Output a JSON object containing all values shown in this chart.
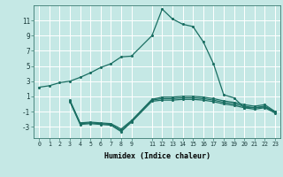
{
  "xlabel": "Humidex (Indice chaleur)",
  "bg_color": "#c5e8e5",
  "line_color": "#1a6e62",
  "grid_color": "#ffffff",
  "xlim": [
    -0.5,
    23.5
  ],
  "ylim": [
    -4.5,
    13.0
  ],
  "xtick_vals": [
    0,
    1,
    2,
    3,
    4,
    5,
    6,
    7,
    8,
    9,
    11,
    12,
    13,
    14,
    15,
    16,
    17,
    18,
    19,
    20,
    21,
    22,
    23
  ],
  "xtick_labels": [
    "0",
    "1",
    "2",
    "3",
    "4",
    "5",
    "6",
    "7",
    "8",
    "9",
    "11",
    "12",
    "13",
    "14",
    "15",
    "16",
    "17",
    "18",
    "19",
    "20",
    "21",
    "22",
    "23"
  ],
  "ytick_vals": [
    -3,
    -1,
    1,
    3,
    5,
    7,
    9,
    11
  ],
  "ytick_labels": [
    "-3",
    "-1",
    "1",
    "3",
    "5",
    "7",
    "9",
    "11"
  ],
  "line1_x": [
    0,
    1,
    2,
    3,
    4,
    5,
    6,
    7,
    8,
    9,
    11,
    12,
    13,
    14,
    15,
    16,
    17,
    18,
    19,
    20,
    21,
    22,
    23
  ],
  "line1_y": [
    2.2,
    2.4,
    2.8,
    3.0,
    3.5,
    4.1,
    4.8,
    5.3,
    6.2,
    6.3,
    9.0,
    12.5,
    11.2,
    10.5,
    10.2,
    8.2,
    5.3,
    1.2,
    0.8,
    -0.5,
    -0.5,
    -0.4,
    -1.0
  ],
  "line2_x": [
    3,
    4,
    5,
    6,
    7,
    8,
    9,
    11,
    12,
    13,
    14,
    15,
    16,
    17,
    18,
    19,
    20,
    21,
    22,
    23
  ],
  "line2_y": [
    0.4,
    -2.6,
    -2.5,
    -2.6,
    -2.7,
    -3.5,
    -2.3,
    0.5,
    0.7,
    0.7,
    0.8,
    0.8,
    0.7,
    0.5,
    0.2,
    0.0,
    -0.3,
    -0.5,
    -0.3,
    -1.1
  ],
  "line3_x": [
    3,
    4,
    5,
    6,
    7,
    8,
    9,
    11,
    12,
    13,
    14,
    15,
    16,
    17,
    18,
    19,
    20,
    21,
    22,
    23
  ],
  "line3_y": [
    0.3,
    -2.7,
    -2.6,
    -2.7,
    -2.8,
    -3.65,
    -2.4,
    0.35,
    0.5,
    0.5,
    0.6,
    0.6,
    0.5,
    0.3,
    0.0,
    -0.2,
    -0.5,
    -0.7,
    -0.5,
    -1.2
  ],
  "line4_x": [
    3,
    4,
    5,
    6,
    7,
    8,
    9,
    11,
    12,
    13,
    14,
    15,
    16,
    17,
    18,
    19,
    20,
    21,
    22,
    23
  ],
  "line4_y": [
    0.5,
    -2.5,
    -2.4,
    -2.5,
    -2.6,
    -3.3,
    -2.2,
    0.6,
    0.9,
    0.9,
    1.0,
    1.0,
    0.9,
    0.7,
    0.4,
    0.2,
    -0.1,
    -0.3,
    -0.1,
    -1.0
  ]
}
